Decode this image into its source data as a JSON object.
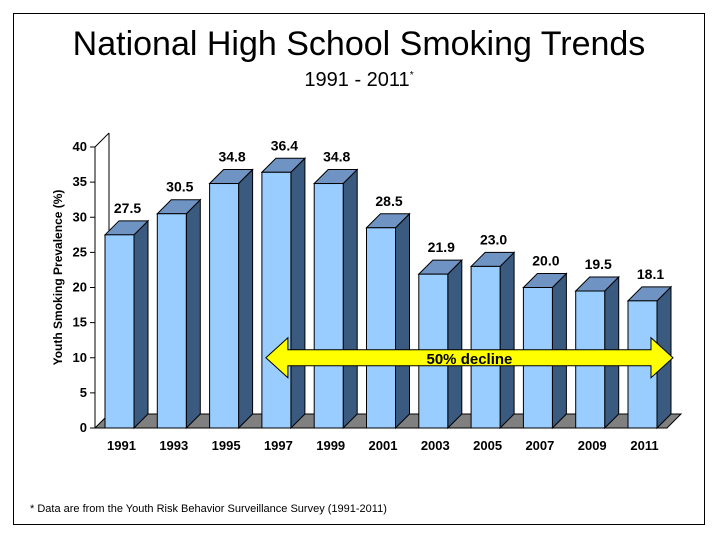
{
  "title": "National High School Smoking Trends",
  "subtitle": "1991 - 2011",
  "subtitle_marker": "*",
  "footnote": "* Data are from the Youth Risk Behavior Surveillance Survey (1991-2011)",
  "colors": {
    "bar_front": "#99ccff",
    "bar_side": "#3a5a80",
    "bar_top": "#6f94c4",
    "floor": "#808080",
    "arrow_fill": "#ffff00"
  },
  "chart_data": {
    "type": "bar",
    "categories": [
      "1991",
      "1993",
      "1995",
      "1997",
      "1999",
      "2001",
      "2003",
      "2005",
      "2007",
      "2009",
      "2011"
    ],
    "values": [
      27.5,
      30.5,
      34.8,
      36.4,
      34.8,
      28.5,
      21.9,
      23.0,
      20.0,
      19.5,
      18.1
    ],
    "value_labels": [
      "27.5",
      "30.5",
      "34.8",
      "36.4",
      "34.8",
      "28.5",
      "21.9",
      "23.0",
      "20.0",
      "19.5",
      "18.1"
    ],
    "ylabel": "Youth Smoking Prevalence (%)",
    "ylim": [
      0,
      40
    ],
    "yticks": [
      0,
      5,
      10,
      15,
      20,
      25,
      30,
      35,
      40
    ],
    "grid": false,
    "style": "3d",
    "annotation": {
      "text": "50% decline",
      "from_category": "1997",
      "to_category": "2011",
      "y": 10
    }
  }
}
